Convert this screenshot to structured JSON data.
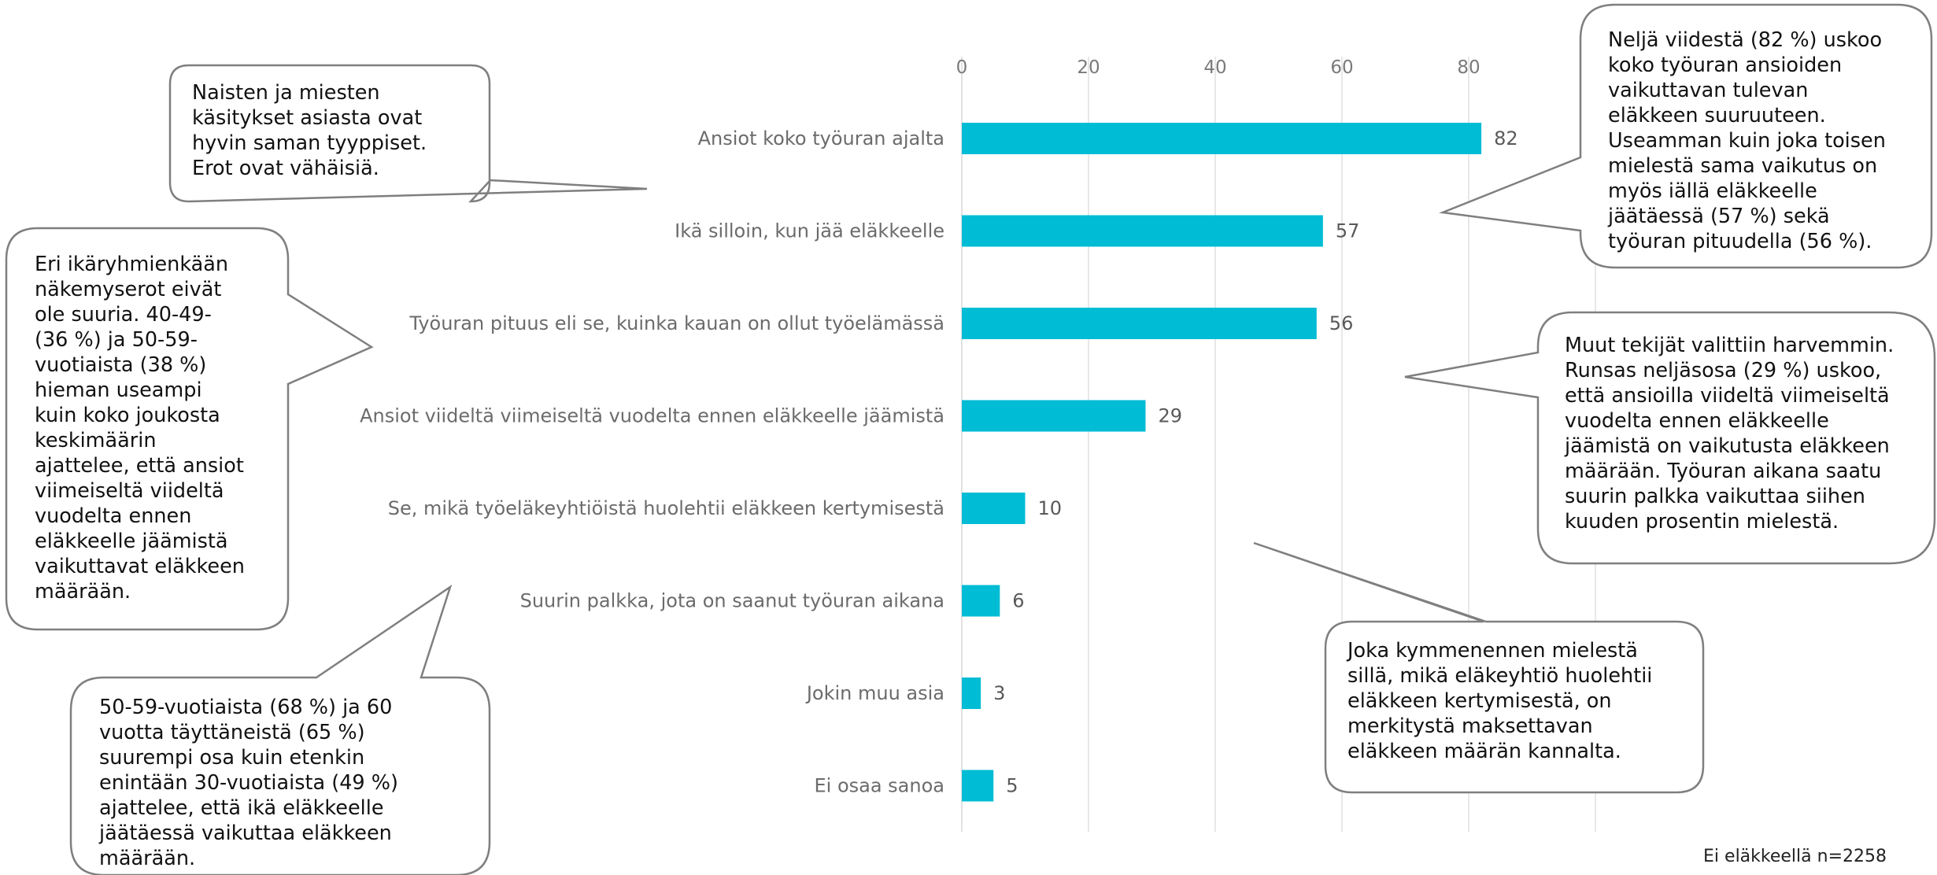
{
  "chart_data": {
    "type": "bar",
    "orientation": "horizontal",
    "categories": [
      "Ansiot koko työuran ajalta",
      "Ikä silloin, kun jää eläkkeelle",
      "Työuran pituus eli se, kuinka kauan on ollut työelämässä",
      "Ansiot viideltä viimeiseltä vuodelta ennen eläkkeelle jäämistä",
      "Se, mikä työeläkeyhtiöistä huolehtii eläkkeen kertymisestä",
      "Suurin palkka, jota on saanut työuran aikana",
      "Jokin muu asia",
      "Ei osaa sanoa"
    ],
    "values": [
      82,
      57,
      56,
      29,
      10,
      6,
      3,
      5
    ],
    "xticks": [
      0,
      20,
      40,
      60,
      80
    ],
    "xlim": [
      0,
      100
    ],
    "grid": true,
    "bar_color": "#00bcd4",
    "gridline_color": "#d9d9d9"
  },
  "callouts": [
    {
      "id": "gender",
      "lines": [
        "Naisten ja miesten",
        "käsitykset asiasta ovat",
        "hyvin saman  tyyppiset.",
        "Erot ovat vähäisiä."
      ]
    },
    {
      "id": "age-groups",
      "lines": [
        "Eri ikäryhmienkään",
        "näkemyserot eivät",
        "ole suuria. 40-49-",
        "(36 %) ja 50-59-",
        "vuotiaista (38 %)",
        "hieman useampi",
        "kuin koko joukosta",
        "keskimäärin",
        "ajattelee, että ansiot",
        "viimeiseltä viideltä",
        "vuodelta ennen",
        "eläkkeelle jäämistä",
        "vaikuttavat eläkkeen",
        "määrään."
      ]
    },
    {
      "id": "retirement-age",
      "lines": [
        "50-59-vuotiaista (68 %) ja 60",
        "vuotta täyttäneistä (65 %)",
        "suurempi osa kuin etenkin",
        "enintään 30-vuotiaista (49 %)",
        "ajattelee, että ikä eläkkeelle",
        "jäätäessä vaikuttaa eläkkeen",
        "määrään."
      ]
    },
    {
      "id": "top-right",
      "lines": [
        "Neljä viidestä (82 %) uskoo",
        "koko työuran ansioiden",
        "vaikuttavan tulevan",
        "eläkkeen suuruuteen.",
        "Useamman kuin joka toisen",
        "mielestä sama vaikutus on",
        "myös iällä eläkkeelle",
        "jäätäessä (57 %) sekä",
        "työuran pituudella (56 %)."
      ]
    },
    {
      "id": "other-factors",
      "lines": [
        "Muut tekijät valittiin harvemmin.",
        "Runsas neljäsosa (29 %) uskoo,",
        "että ansioilla viideltä viimeiseltä",
        "vuodelta ennen eläkkeelle",
        "jäämistä on vaikutusta eläkkeen",
        "määrään. Työuran aikana saatu",
        "suurin palkka vaikuttaa siihen",
        "kuuden prosentin mielestä."
      ]
    },
    {
      "id": "pension-company",
      "lines": [
        "Joka kymmenennen mielestä",
        "sillä, mikä eläkeyhtiö huolehtii",
        "eläkkeen kertymisestä, on",
        "merkitystä maksettavan",
        "eläkkeen määrän kannalta."
      ]
    }
  ],
  "footnote": "Ei eläkkeellä n=2258",
  "colors": {
    "callout_border": "#7f7f7f",
    "callout_fill": "#ffffff"
  }
}
